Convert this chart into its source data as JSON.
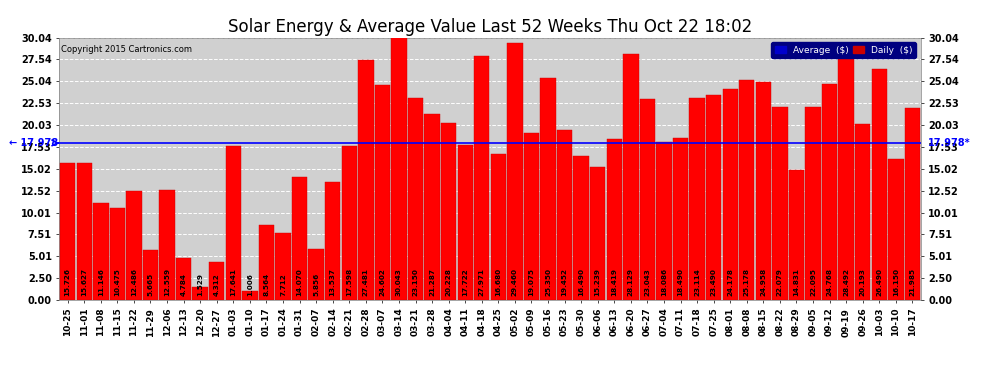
{
  "title": "Solar Energy & Average Value Last 52 Weeks Thu Oct 22 18:02",
  "copyright": "Copyright 2015 Cartronics.com",
  "average_value": 17.978,
  "categories": [
    "10-25",
    "11-01",
    "11-08",
    "11-15",
    "11-22",
    "11-29",
    "12-06",
    "12-13",
    "12-20",
    "12-27",
    "01-03",
    "01-10",
    "01-17",
    "01-24",
    "01-31",
    "02-07",
    "02-14",
    "02-21",
    "02-28",
    "03-07",
    "03-14",
    "03-21",
    "03-28",
    "04-04",
    "04-11",
    "04-18",
    "04-25",
    "05-02",
    "05-09",
    "05-16",
    "05-23",
    "05-30",
    "06-06",
    "06-13",
    "06-20",
    "06-27",
    "07-04",
    "07-11",
    "07-18",
    "07-25",
    "08-01",
    "08-08",
    "08-15",
    "08-22",
    "08-29",
    "09-05",
    "09-12",
    "09-19",
    "09-26",
    "10-03",
    "10-10",
    "10-17"
  ],
  "values": [
    15.726,
    15.627,
    11.146,
    10.475,
    12.486,
    5.665,
    12.559,
    4.784,
    1.529,
    4.312,
    17.641,
    1.006,
    8.564,
    7.712,
    14.07,
    5.856,
    13.537,
    17.598,
    27.481,
    24.602,
    30.043,
    23.15,
    21.287,
    20.228,
    17.722,
    27.971,
    16.68,
    29.46,
    19.075,
    25.35,
    19.452,
    16.49,
    15.239,
    18.419,
    28.129,
    23.043,
    18.086,
    18.49,
    23.114,
    23.49,
    24.178,
    25.178,
    24.958,
    22.079,
    14.831,
    22.095,
    24.768,
    28.492,
    20.193,
    26.49,
    16.15,
    21.985
  ],
  "bar_color": "#ff0000",
  "avg_line_color": "#0000ff",
  "background_color": "#ffffff",
  "plot_bg_color": "#d0d0d0",
  "grid_color": "#ffffff",
  "y_ticks": [
    0.0,
    2.5,
    5.01,
    7.51,
    10.01,
    12.52,
    15.02,
    17.53,
    20.03,
    22.53,
    25.04,
    27.54,
    30.04
  ],
  "legend_avg_color": "#0000cd",
  "legend_daily_color": "#cc0000",
  "title_fontsize": 12,
  "tick_fontsize": 7,
  "value_fontsize": 5.2
}
